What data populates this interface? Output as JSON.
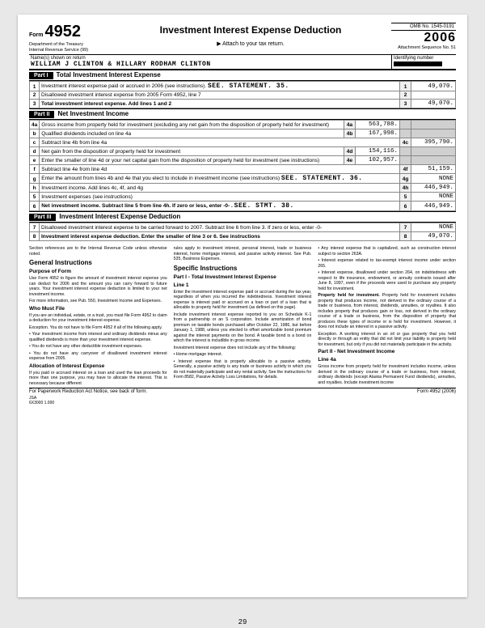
{
  "header": {
    "form_label": "Form",
    "form_number": "4952",
    "dept1": "Department of the Treasury",
    "dept2": "Internal Revenue Service    (99)",
    "title": "Investment Interest Expense Deduction",
    "attach": "▶ Attach to your tax return.",
    "omb": "OMB No. 1545-0191",
    "year": "2006",
    "seq": "Attachment Sequence No. 51"
  },
  "name": {
    "label": "Name(s) shown on return",
    "value": "WILLIAM J CLINTON & HILLARY RODHAM CLINTON",
    "id_label": "Identifying number"
  },
  "part1": {
    "label": "Part I",
    "title": "Total Investment Interest Expense"
  },
  "part2": {
    "label": "Part II",
    "title": "Net Investment Income"
  },
  "part3": {
    "label": "Part III",
    "title": "Investment Interest Expense Deduction"
  },
  "lines": {
    "l1": {
      "no": "1",
      "desc": "Investment interest expense paid or accrued in 2006 (see instructions).",
      "ref": "SEE. STATEMENT. 35.",
      "val": "49,070."
    },
    "l2": {
      "no": "2",
      "desc": "Disallowed investment interest expense from 2005 Form 4952, line 7",
      "val": ""
    },
    "l3": {
      "no": "3",
      "desc": "Total investment interest expense. Add lines 1 and 2",
      "val": "49,070."
    },
    "l4a": {
      "no": "4a",
      "desc": "Gross income from property held for investment (excluding any net gain from the disposition of property held for investment)",
      "val": "563,788."
    },
    "l4b": {
      "no": "b",
      "desc": "Qualified dividends included on line 4a",
      "val": "167,998."
    },
    "l4c": {
      "no": "c",
      "desc": "Subtract line 4b from line 4a",
      "val": "395,790."
    },
    "l4d": {
      "no": "d",
      "desc": "Net gain from the disposition of property held for investment",
      "val": "154,116."
    },
    "l4e": {
      "no": "e",
      "desc": "Enter the smaller of line 4d or your net capital gain from the disposition of property held for investment (see instructions)",
      "val": "102,957."
    },
    "l4f": {
      "no": "f",
      "desc": "Subtract line 4e from line 4d",
      "val": "51,159."
    },
    "l4g": {
      "no": "g",
      "desc": "Enter the amount from lines 4b and 4e that you elect to include in investment income (see instructions)",
      "ref": "SEE. STATEMENT. 36.",
      "val": "NONE"
    },
    "l4h": {
      "no": "h",
      "desc": "Investment income. Add lines 4c, 4f, and 4g",
      "val": "446,949."
    },
    "l5": {
      "no": "5",
      "desc": "Investment expenses (see instructions)",
      "val": "NONE"
    },
    "l6": {
      "no": "6",
      "desc": "Net investment income. Subtract line 5 from line 4h. If zero or less, enter -0- .",
      "ref": "SEE. STMT. 38.",
      "val": "446,949."
    },
    "l7": {
      "no": "7",
      "desc": "Disallowed investment interest expense to be carried forward to 2007. Subtract line 6 from line 3. If zero or less, enter -0-",
      "val": "NONE"
    },
    "l8": {
      "no": "8",
      "desc": "Investment interest expense deduction. Enter the smaller of line 3 or 6. See instructions",
      "val": "49,070."
    }
  },
  "instr": {
    "sec_ref": "Section references are to the Internal Revenue Code unless otherwise noted.",
    "gen_h": "General Instructions",
    "purpose_h": "Purpose of Form",
    "purpose_p1": "Use Form 4952 to figure the amount of investment interest expense you can deduct for 2006 and the amount you can carry forward to future years. Your investment interest expense deduction is limited to your net investment income.",
    "purpose_p2": "For more information, see Pub. 550, Investment Income and Expenses.",
    "who_h": "Who Must File",
    "who_p1": "If you are an individual, estate, or a trust, you must file Form 4952 to claim a deduction for your investment interest expense.",
    "who_p2": "Exception. You do not have to file Form 4952 if all of the following apply.",
    "who_b1": "• Your investment income from interest and ordinary dividends minus any qualified dividends is more than your investment interest expense.",
    "who_b2": "• You do not have any other deductible investment expenses.",
    "who_b3": "• You do not have any carryover of disallowed investment interest expense from 2005.",
    "alloc_h": "Allocation of Interest Expense",
    "alloc_p": "If you paid or accrued interest on a loan and used the loan proceeds for more than one purpose, you may have to allocate the interest. This is necessary because different",
    "c2_p1": "rules apply to investment interest, personal interest, trade or business interest, home mortgage interest, and passive activity interest. See Pub. 535, Business Expenses.",
    "spec_h": "Specific Instructions",
    "p1_h": "Part I - Total Investment Interest Expense",
    "line1_h": "Line 1",
    "line1_p1": "Enter the investment interest expense paid or accrued during the tax year, regardless of when you incurred the indebtedness. Investment interest expense is interest paid or accrued on a loan or part of a loan that is allocable to property held for investment (as defined on this page).",
    "line1_p2": "Include investment interest expense reported to you on Schedule K-1 from a partnership or an S corporation. Include amortization of bond premium on taxable bonds purchased after October 22, 1986, but before January 1, 1988, unless you elected to offset amortizable bond premium against the interest payments on the bond. A taxable bond is a bond on which the interest is includible in gross income.",
    "line1_p3": "Investment interest expense does not include any of the following:",
    "line1_b1": "• Home mortgage interest.",
    "line1_b2": "• Interest expense that is properly allocable to a passive activity. Generally, a passive activity is any trade or business activity in which you do not materially participate and any rental activity. See the instructions for Form 8582, Passive Activity Loss Limitations, for details.",
    "c3_b1": "• Any interest expense that is capitalized, such as construction interest subject to section 263A.",
    "c3_b2": "• Interest expense related to tax-exempt interest income under section 265.",
    "c3_b3": "• Interest expense, disallowed under section 264, on indebtedness with respect to life insurance, endowment, or annuity contracts issued after June 8, 1997, even if the proceeds were used to purchase any property held for investment.",
    "prop_h": "Property held for investment.",
    "prop_p": "Property held for investment includes property that produces income, not derived in the ordinary course of a trade or business, from interest, dividends, annuities, or royalties. It also includes property that produces gain or loss, not derived in the ordinary course of a trade or business, from the disposition of property that produces these types of income or is held for investment. However, it does not include an interest in a passive activity.",
    "exc_p": "Exception. A working interest in an oil or gas property that you held directly or through an entity that did not limit your liability is property held for investment, but only if you did not materially participate in the activity.",
    "p2_h": "Part II - Net Investment Income",
    "l4a_h": "Line 4a",
    "l4a_p": "Gross income from property held for investment includes income, unless derived in the ordinary course of a trade or business, from interest, ordinary dividends (except Alaska Permanent Fund dividends), annuities, and royalties. Include investment income"
  },
  "footer": {
    "notice": "For Paperwork Reduction Act Notice, see back of form.",
    "form_ref": "Form 4952 (2006)",
    "jsa": "JSA",
    "jsa_code": "6X3000 1.000",
    "page": "29"
  }
}
